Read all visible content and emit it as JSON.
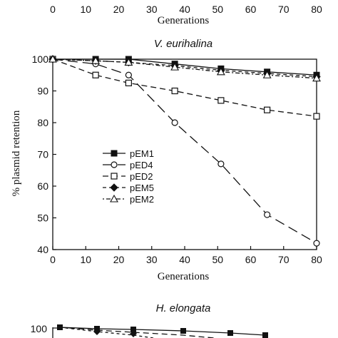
{
  "top_fragment": {
    "x_ticks": [
      "0",
      "10",
      "20",
      "30",
      "40",
      "50",
      "60",
      "70",
      "80"
    ],
    "xlabel": "Generations"
  },
  "bottom_fragment": {
    "title": "H. elongata",
    "y_tick": "100"
  },
  "chart_data": {
    "type": "line",
    "title": "V. eurihalina",
    "xlabel": "Generations",
    "ylabel": "% plasmid retention",
    "xlim": [
      0,
      80
    ],
    "ylim": [
      40,
      100
    ],
    "x_ticks": [
      0,
      10,
      20,
      30,
      40,
      50,
      60,
      70,
      80
    ],
    "y_ticks": [
      40,
      50,
      60,
      70,
      80,
      90,
      100
    ],
    "grid": false,
    "legend_position": "center-left",
    "series": [
      {
        "name": "pEM1",
        "marker": "filled-square",
        "dash": "solid",
        "x": [
          0,
          13,
          23,
          37,
          51,
          65,
          80
        ],
        "y": [
          100,
          100,
          100,
          98.5,
          97,
          96,
          95
        ]
      },
      {
        "name": "pED4",
        "marker": "open-circle",
        "dash": "long-dash",
        "x": [
          0,
          13,
          23,
          37,
          51,
          65,
          80
        ],
        "y": [
          100,
          98.5,
          95,
          80,
          67,
          51,
          42
        ]
      },
      {
        "name": "pED2",
        "marker": "open-square",
        "dash": "dash",
        "x": [
          0,
          13,
          23,
          37,
          51,
          65,
          80
        ],
        "y": [
          100,
          95,
          92.5,
          90,
          87,
          84,
          82
        ]
      },
      {
        "name": "pEM5",
        "marker": "filled-diamond",
        "dash": "short-dash",
        "x": [
          0,
          13,
          23,
          37,
          51,
          65,
          80
        ],
        "y": [
          100,
          99.5,
          99,
          98,
          96.5,
          95.5,
          94.5
        ]
      },
      {
        "name": "pEM2",
        "marker": "open-triangle",
        "dash": "dot-dash",
        "x": [
          0,
          13,
          23,
          37,
          51,
          65,
          80
        ],
        "y": [
          100,
          99.5,
          99,
          97.5,
          96,
          95,
          94
        ]
      }
    ]
  }
}
